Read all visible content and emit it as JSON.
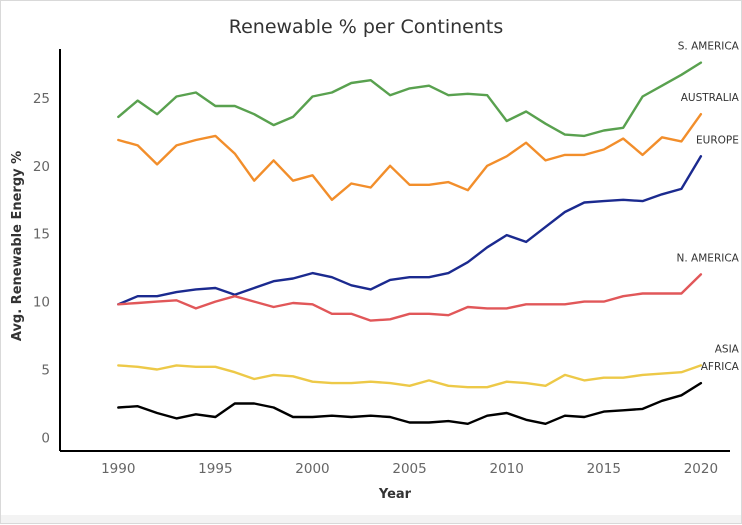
{
  "chart_data": {
    "type": "line",
    "title": "Renewable % per Continents",
    "xlabel": "Year",
    "ylabel": "Avg. Renewable Energy %",
    "xlim": [
      1987,
      2021.5
    ],
    "ylim": [
      -1,
      28.6
    ],
    "grid": false,
    "legend": "inline labels at line ends (right)",
    "x_ticks": [
      1990,
      1995,
      2000,
      2005,
      2010,
      2015,
      2020
    ],
    "y_ticks": [
      0,
      5,
      10,
      15,
      20,
      25
    ],
    "x": [
      1990,
      1991,
      1992,
      1993,
      1994,
      1995,
      1996,
      1997,
      1998,
      1999,
      2000,
      2001,
      2002,
      2003,
      2004,
      2005,
      2006,
      2007,
      2008,
      2009,
      2010,
      2011,
      2012,
      2013,
      2014,
      2015,
      2016,
      2017,
      2018,
      2019,
      2020
    ],
    "series": [
      {
        "name": "S. AMERICA",
        "color": "#59a14f",
        "values": [
          23.6,
          24.8,
          23.8,
          25.1,
          25.4,
          24.4,
          24.4,
          23.8,
          23.0,
          23.6,
          25.1,
          25.4,
          26.1,
          26.3,
          25.2,
          25.7,
          25.9,
          25.2,
          25.3,
          25.2,
          23.3,
          24.0,
          23.1,
          22.3,
          22.2,
          22.6,
          22.8,
          25.1,
          25.9,
          26.7,
          27.6
        ]
      },
      {
        "name": "AUSTRALIA",
        "color": "#f28e2b",
        "values": [
          21.9,
          21.5,
          20.1,
          21.5,
          21.9,
          22.2,
          20.9,
          18.9,
          20.4,
          18.9,
          19.3,
          17.5,
          18.7,
          18.4,
          20.0,
          18.6,
          18.6,
          18.8,
          18.2,
          20.0,
          20.7,
          21.7,
          20.4,
          20.8,
          20.8,
          21.2,
          22.0,
          20.8,
          22.1,
          21.8,
          23.8
        ]
      },
      {
        "name": "EUROPE",
        "color": "#1b2a8f",
        "values": [
          9.8,
          10.4,
          10.4,
          10.7,
          10.9,
          11.0,
          10.5,
          11.0,
          11.5,
          11.7,
          12.1,
          11.8,
          11.2,
          10.9,
          11.6,
          11.8,
          11.8,
          12.1,
          12.9,
          14.0,
          14.9,
          14.4,
          15.5,
          16.6,
          17.3,
          17.4,
          17.5,
          17.4,
          17.9,
          18.3,
          20.7
        ]
      },
      {
        "name": "N. AMERICA",
        "color": "#e15759",
        "values": [
          9.8,
          9.9,
          10.0,
          10.1,
          9.5,
          10.0,
          10.4,
          10.0,
          9.6,
          9.9,
          9.8,
          9.1,
          9.1,
          8.6,
          8.7,
          9.1,
          9.1,
          9.0,
          9.6,
          9.5,
          9.5,
          9.8,
          9.8,
          9.8,
          10.0,
          10.0,
          10.4,
          10.6,
          10.6,
          10.6,
          12.0
        ]
      },
      {
        "name": "ASIA",
        "color": "#edc948",
        "values": [
          5.3,
          5.2,
          5.0,
          5.3,
          5.2,
          5.2,
          4.8,
          4.3,
          4.6,
          4.5,
          4.1,
          4.0,
          4.0,
          4.1,
          4.0,
          3.8,
          4.2,
          3.8,
          3.7,
          3.7,
          4.1,
          4.0,
          3.8,
          4.6,
          4.2,
          4.4,
          4.4,
          4.6,
          4.7,
          4.8,
          5.3
        ]
      },
      {
        "name": "AFRICA",
        "color": "#000000",
        "values": [
          2.2,
          2.3,
          1.8,
          1.4,
          1.7,
          1.5,
          2.5,
          2.5,
          2.2,
          1.5,
          1.5,
          1.6,
          1.5,
          1.6,
          1.5,
          1.1,
          1.1,
          1.2,
          1.0,
          1.6,
          1.8,
          1.3,
          1.0,
          1.6,
          1.5,
          1.9,
          2.0,
          2.1,
          2.7,
          3.1,
          4.0
        ]
      }
    ]
  }
}
